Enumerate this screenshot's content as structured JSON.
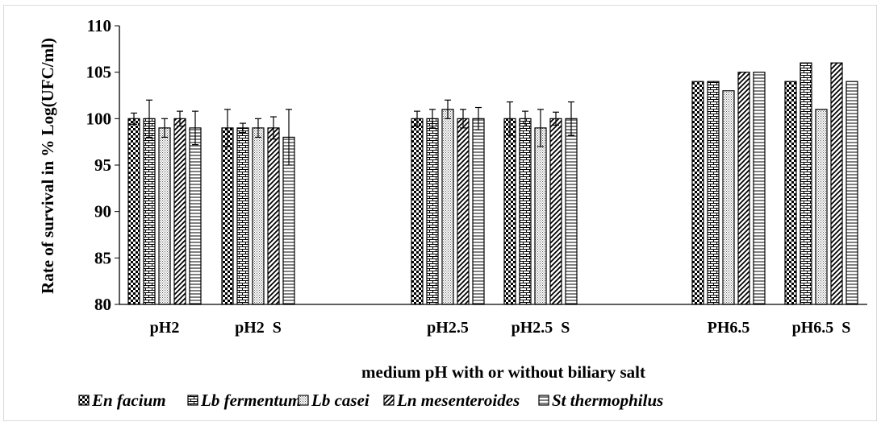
{
  "chart_data": {
    "type": "bar",
    "title": "",
    "xlabel": "medium pH with or without biliary salt",
    "ylabel": "Rate of survival in % Log(UFC/ml)",
    "ylim": [
      80,
      110
    ],
    "yticks": [
      "80",
      "85",
      "90",
      "95",
      "100",
      "105",
      "110"
    ],
    "categories": [
      "pH2",
      "pH2  S",
      "pH2.5",
      "pH2.5  S",
      "PH6.5",
      "pH6.5  S"
    ],
    "grid": false,
    "legend_position": "bottom",
    "series": [
      {
        "name": "En facium",
        "pattern": "checker",
        "values": [
          100,
          99,
          100,
          100,
          104,
          104
        ],
        "errors": [
          0.6,
          2.0,
          0.8,
          1.8,
          0,
          0
        ]
      },
      {
        "name": "Lb fermentum",
        "pattern": "brick",
        "values": [
          100,
          99,
          100,
          100,
          104,
          106
        ],
        "errors": [
          2.0,
          0.5,
          1.0,
          0.8,
          0,
          0
        ]
      },
      {
        "name": "Lb casei",
        "pattern": "dots",
        "values": [
          99,
          99,
          101,
          99,
          103,
          101
        ],
        "errors": [
          1.0,
          1.0,
          1.0,
          2.0,
          0,
          0
        ]
      },
      {
        "name": "Ln mesenteroides",
        "pattern": "diagonal",
        "values": [
          100,
          99,
          100,
          100,
          105,
          106
        ],
        "errors": [
          0.8,
          1.2,
          1.0,
          0.7,
          0,
          0
        ]
      },
      {
        "name": "St thermophilus",
        "pattern": "hlines",
        "values": [
          99,
          98,
          100,
          100,
          105,
          104
        ],
        "errors": [
          1.8,
          3.0,
          1.2,
          1.8,
          0,
          0
        ]
      }
    ]
  }
}
